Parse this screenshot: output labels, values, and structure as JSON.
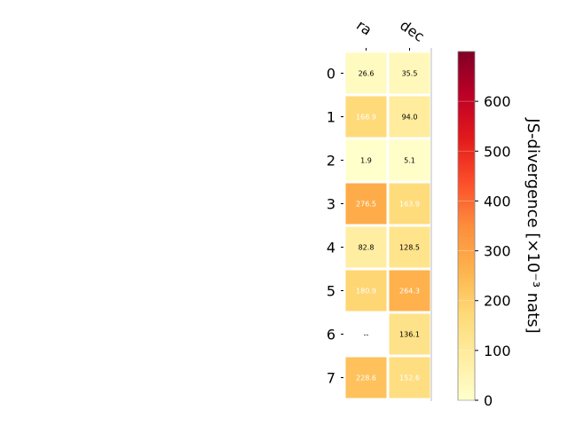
{
  "chart_data": {
    "type": "heatmap",
    "columns": [
      "ra",
      "dec"
    ],
    "rows": [
      "0",
      "1",
      "2",
      "3",
      "4",
      "5",
      "6",
      "7"
    ],
    "values": [
      [
        26.6,
        35.5
      ],
      [
        168.9,
        94.0
      ],
      [
        1.9,
        5.1
      ],
      [
        276.5,
        163.9
      ],
      [
        82.8,
        128.5
      ],
      [
        180.9,
        264.3
      ],
      [
        null,
        136.1
      ],
      [
        228.6,
        152.6
      ]
    ],
    "cell_labels": [
      [
        "26.6",
        "35.5"
      ],
      [
        "168.9",
        "94.0"
      ],
      [
        "1.9",
        "5.1"
      ],
      [
        "276.5",
        "163.9"
      ],
      [
        "82.8",
        "128.5"
      ],
      [
        "180.9",
        "264.3"
      ],
      [
        "--",
        "136.1"
      ],
      [
        "228.6",
        "152.6"
      ]
    ],
    "colorbar": {
      "label": "JS-divergence [×10⁻³ nats]",
      "range": [
        0,
        700
      ],
      "ticks": [
        0,
        100,
        200,
        300,
        400,
        500,
        600
      ],
      "colormap": "YlOrRd",
      "stops": [
        "#ffffcc",
        "#ffeda0",
        "#fed976",
        "#feb24c",
        "#fd8d3c",
        "#fc4e2a",
        "#e31a1c",
        "#bd0026",
        "#800026"
      ]
    },
    "label_threshold": 150,
    "label_color_dark": "#000000",
    "label_color_light": "#ffffff"
  }
}
